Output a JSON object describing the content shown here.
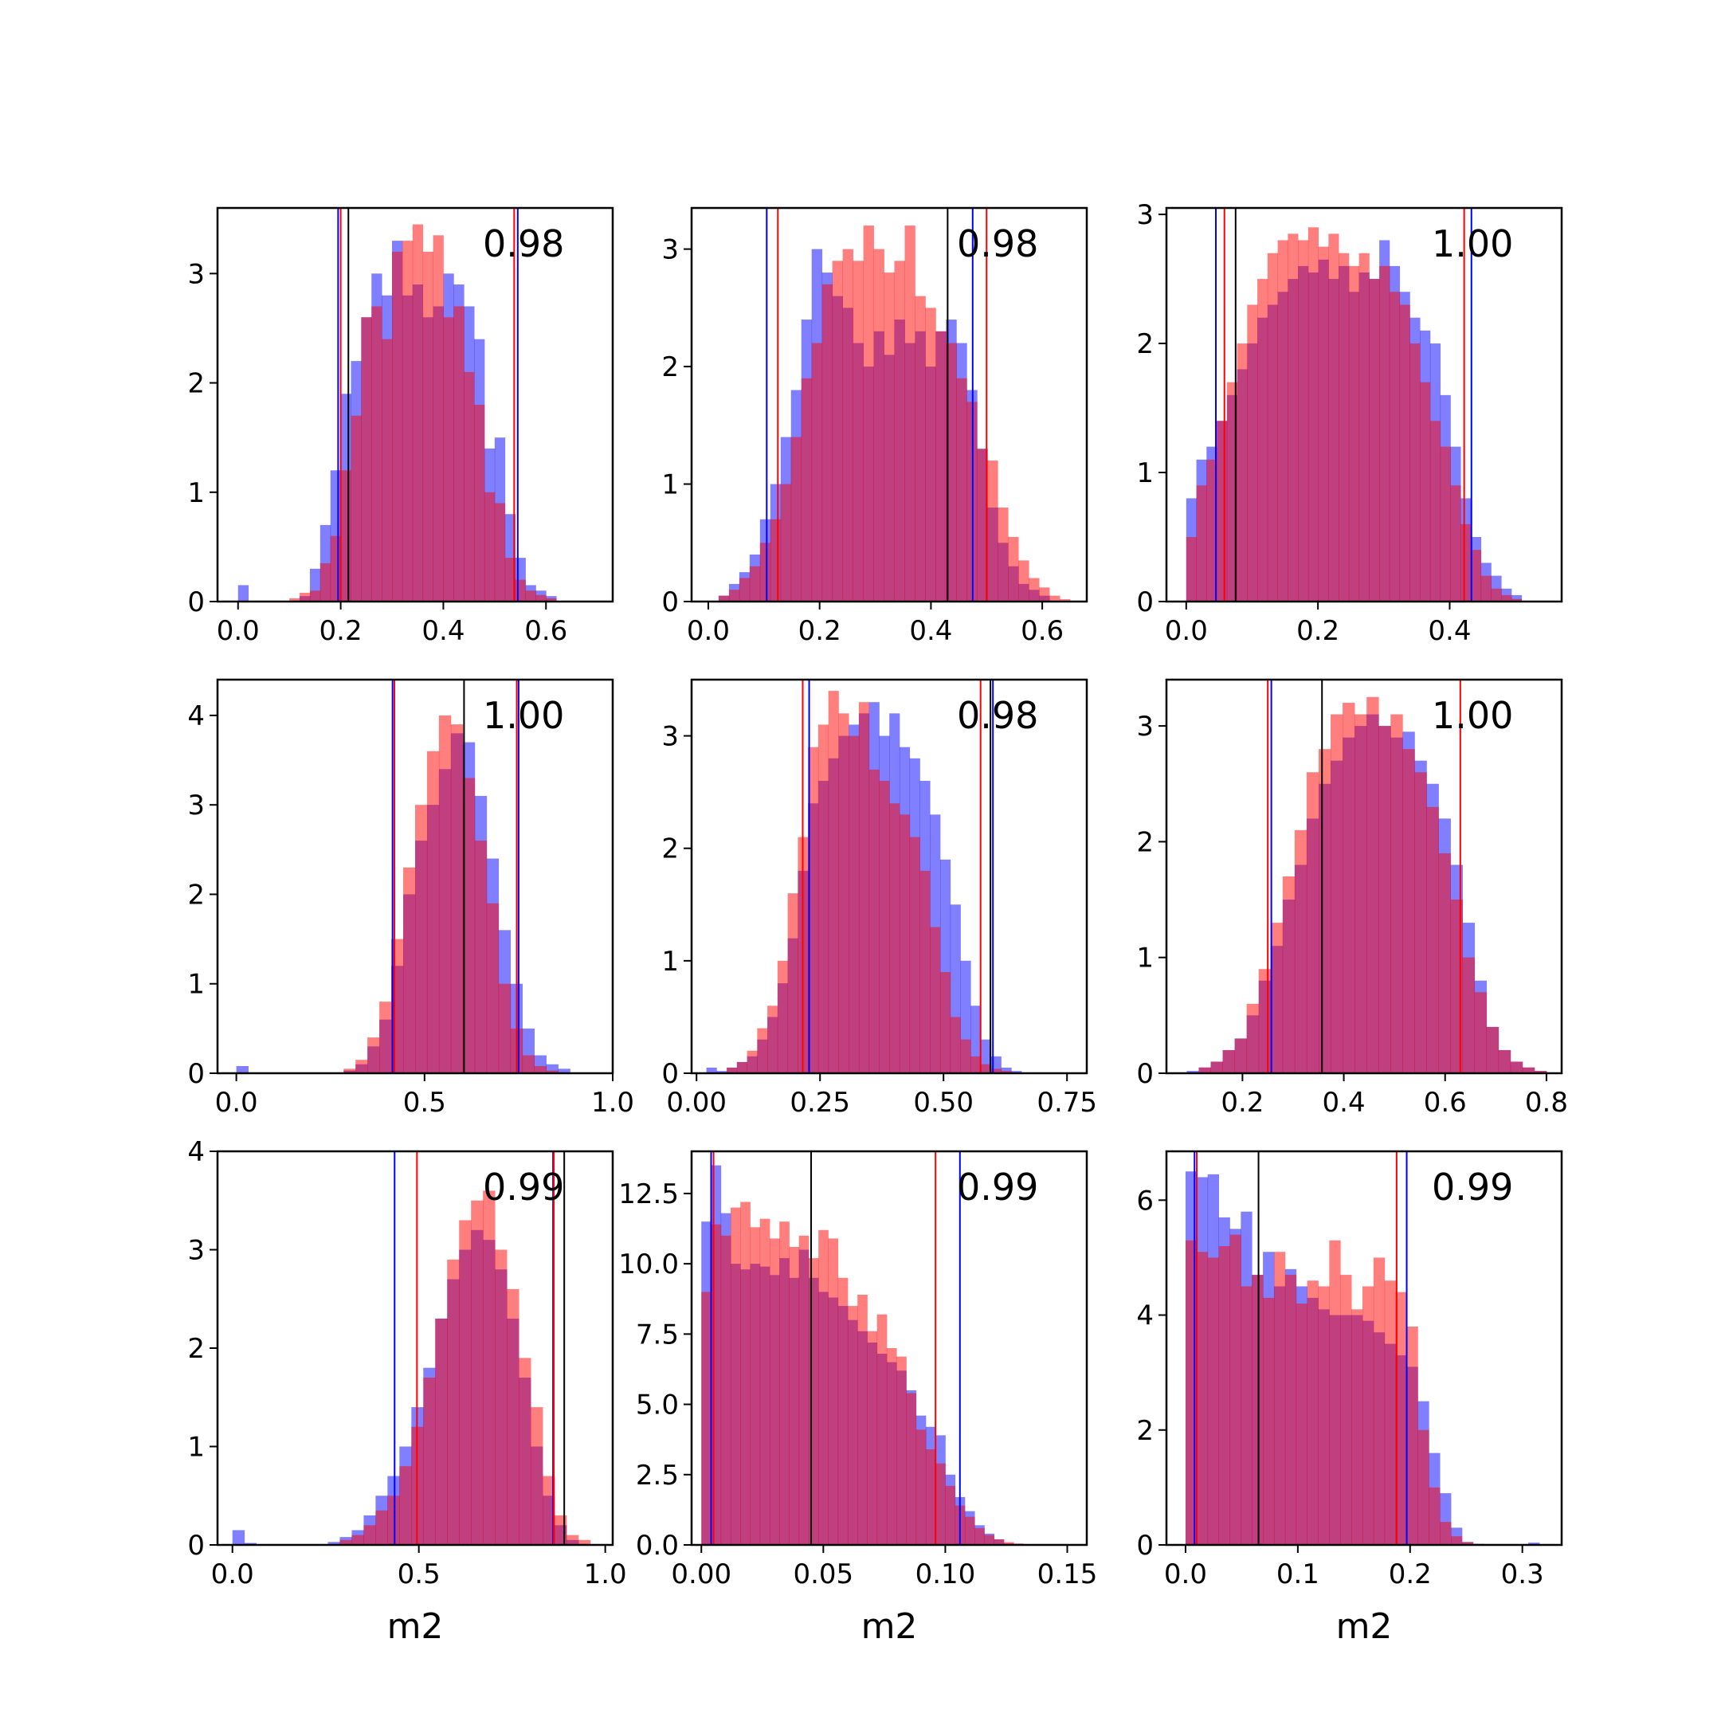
{
  "figure": {
    "background": "#ffffff"
  },
  "style": {
    "blue": "#0000ff",
    "red": "#ff0000",
    "purple": "#c0367b",
    "line_black": "#000000",
    "hist_alpha": 0.5
  },
  "chart_data": [
    {
      "type": "bar",
      "corr_label": "0.98",
      "xlabel": "",
      "xlim": [
        -0.04,
        0.73
      ],
      "ylim": [
        0,
        3.6
      ],
      "xticks": [
        0.0,
        0.2,
        0.4,
        0.6
      ],
      "xtick_labels": [
        "0.0",
        "0.2",
        "0.4",
        "0.6"
      ],
      "yticks": [
        0,
        1,
        2,
        3
      ],
      "ytick_labels": [
        "0",
        "1",
        "2",
        "3"
      ],
      "hist_range": [
        0.0,
        0.7
      ],
      "blue_hist": [
        0.15,
        0,
        0,
        0,
        0,
        0,
        0.05,
        0.3,
        0.7,
        1.2,
        1.9,
        2.2,
        2.6,
        3.0,
        2.8,
        3.3,
        2.8,
        2.9,
        2.6,
        2.7,
        3.0,
        2.9,
        2.7,
        2.4,
        1.4,
        1.5,
        0.8,
        0.4,
        0.15,
        0.1,
        0.05,
        0,
        0,
        0,
        0
      ],
      "red_hist": [
        0,
        0,
        0,
        0,
        0,
        0.03,
        0.08,
        0.1,
        0.35,
        0.6,
        1.2,
        1.7,
        2.6,
        2.7,
        2.4,
        3.2,
        3.3,
        3.45,
        3.2,
        3.35,
        2.6,
        2.7,
        2.1,
        1.8,
        1.0,
        0.9,
        0.4,
        0.2,
        0.1,
        0.06,
        0.03,
        0,
        0,
        0,
        0
      ],
      "lines": {
        "blue": [
          0.195,
          0.545
        ],
        "red": [
          0.2,
          0.538
        ],
        "black": [
          0.215
        ]
      }
    },
    {
      "type": "bar",
      "corr_label": "0.98",
      "xlabel": "",
      "xlim": [
        -0.03,
        0.68
      ],
      "ylim": [
        0,
        3.35
      ],
      "xticks": [
        0.0,
        0.2,
        0.4,
        0.6
      ],
      "xtick_labels": [
        "0.0",
        "0.2",
        "0.4",
        "0.6"
      ],
      "yticks": [
        0,
        1,
        2,
        3
      ],
      "ytick_labels": [
        "0",
        "1",
        "2",
        "3"
      ],
      "hist_range": [
        0.0,
        0.65
      ],
      "blue_hist": [
        0,
        0.05,
        0.15,
        0.25,
        0.4,
        0.7,
        1.0,
        1.4,
        1.8,
        2.4,
        3.0,
        2.8,
        2.6,
        2.5,
        2.2,
        2.0,
        2.3,
        2.1,
        2.4,
        2.2,
        2.3,
        2.0,
        2.3,
        2.4,
        2.2,
        1.8,
        1.3,
        0.8,
        0.5,
        0.3,
        0.15,
        0.1,
        0.05,
        0,
        0
      ],
      "red_hist": [
        0,
        0.05,
        0.1,
        0.2,
        0.3,
        0.5,
        0.7,
        1.0,
        1.4,
        1.9,
        2.2,
        2.7,
        2.9,
        3.0,
        2.9,
        3.2,
        3.0,
        2.8,
        2.9,
        3.2,
        2.6,
        2.5,
        2.3,
        2.2,
        1.9,
        1.7,
        1.3,
        1.2,
        0.8,
        0.55,
        0.35,
        0.2,
        0.12,
        0.05,
        0.02
      ],
      "lines": {
        "blue": [
          0.105,
          0.475
        ],
        "red": [
          0.125,
          0.5
        ],
        "black": [
          0.43
        ]
      }
    },
    {
      "type": "bar",
      "corr_label": "1.00",
      "xlabel": "",
      "xlim": [
        -0.03,
        0.57
      ],
      "ylim": [
        0,
        3.05
      ],
      "xticks": [
        0.0,
        0.2,
        0.4
      ],
      "xtick_labels": [
        "0.0",
        "0.2",
        "0.4"
      ],
      "yticks": [
        0,
        1,
        2,
        3
      ],
      "ytick_labels": [
        "0",
        "1",
        "2",
        "3"
      ],
      "hist_range": [
        0.0,
        0.54
      ],
      "blue_hist": [
        0.8,
        1.1,
        1.2,
        1.4,
        1.6,
        1.8,
        2.0,
        2.2,
        2.3,
        2.4,
        2.5,
        2.6,
        2.55,
        2.65,
        2.5,
        2.6,
        2.4,
        2.55,
        2.5,
        2.8,
        2.6,
        2.4,
        2.2,
        2.1,
        2.0,
        1.6,
        1.2,
        0.8,
        0.5,
        0.3,
        0.2,
        0.1,
        0.05,
        0,
        0
      ],
      "red_hist": [
        0.5,
        0.9,
        1.1,
        1.4,
        1.7,
        2.0,
        2.3,
        2.5,
        2.7,
        2.8,
        2.85,
        2.8,
        2.9,
        2.75,
        2.85,
        2.7,
        2.6,
        2.7,
        2.5,
        2.6,
        2.4,
        2.3,
        2.0,
        1.7,
        1.4,
        1.2,
        0.9,
        0.6,
        0.4,
        0.2,
        0.1,
        0.05,
        0.02,
        0,
        0
      ],
      "lines": {
        "blue": [
          0.045,
          0.433
        ],
        "red": [
          0.058,
          0.422
        ],
        "black": [
          0.075
        ]
      }
    },
    {
      "type": "bar",
      "corr_label": "1.00",
      "xlabel": "",
      "xlim": [
        -0.05,
        1.0
      ],
      "ylim": [
        0,
        4.4
      ],
      "xticks": [
        0.0,
        0.5,
        1.0
      ],
      "xtick_labels": [
        "0.0",
        "0.5",
        "1.0"
      ],
      "yticks": [
        0,
        1,
        2,
        3,
        4
      ],
      "ytick_labels": [
        "0",
        "1",
        "2",
        "3",
        "4"
      ],
      "hist_range": [
        0.0,
        0.95
      ],
      "blue_hist": [
        0.08,
        0,
        0,
        0,
        0,
        0,
        0,
        0,
        0,
        0.03,
        0.1,
        0.3,
        0.6,
        1.2,
        2.0,
        2.6,
        3.0,
        3.4,
        3.8,
        3.7,
        3.1,
        2.4,
        1.6,
        1.0,
        0.5,
        0.2,
        0.1,
        0.05,
        0,
        0
      ],
      "red_hist": [
        0,
        0,
        0,
        0,
        0,
        0,
        0,
        0,
        0,
        0.05,
        0.15,
        0.4,
        0.8,
        1.5,
        2.3,
        3.0,
        3.6,
        4.0,
        3.9,
        3.3,
        2.6,
        1.9,
        1.0,
        0.5,
        0.2,
        0.08,
        0.03,
        0,
        0,
        0
      ],
      "lines": {
        "blue": [
          0.415,
          0.75
        ],
        "red": [
          0.42,
          0.745
        ],
        "black": [
          0.605
        ]
      }
    },
    {
      "type": "bar",
      "corr_label": "0.98",
      "xlabel": "",
      "xlim": [
        -0.01,
        0.79
      ],
      "ylim": [
        0,
        3.5
      ],
      "xticks": [
        0.0,
        0.25,
        0.5,
        0.75
      ],
      "xtick_labels": [
        "0.00",
        "0.25",
        "0.50",
        "0.75"
      ],
      "yticks": [
        0,
        1,
        2,
        3
      ],
      "ytick_labels": [
        "0",
        "1",
        "2",
        "3"
      ],
      "hist_range": [
        0.02,
        0.74
      ],
      "blue_hist": [
        0.05,
        0.02,
        0.05,
        0.1,
        0.15,
        0.3,
        0.5,
        0.8,
        1.2,
        1.8,
        2.4,
        2.6,
        2.8,
        3.0,
        3.1,
        3.2,
        3.3,
        3.0,
        3.2,
        2.9,
        2.8,
        2.6,
        2.3,
        1.9,
        1.5,
        1.0,
        0.6,
        0.3,
        0.15,
        0.05,
        0.02,
        0,
        0,
        0,
        0
      ],
      "red_hist": [
        0,
        0,
        0.05,
        0.1,
        0.2,
        0.4,
        0.6,
        1.0,
        1.6,
        2.1,
        2.9,
        3.1,
        3.4,
        3.2,
        3.0,
        3.3,
        2.7,
        2.6,
        2.4,
        2.3,
        2.1,
        1.8,
        1.3,
        0.9,
        0.5,
        0.3,
        0.15,
        0.08,
        0.04,
        0.02,
        0,
        0,
        0,
        0,
        0
      ],
      "lines": {
        "blue": [
          0.228,
          0.6
        ],
        "red": [
          0.215,
          0.575
        ],
        "black": [
          0.595
        ]
      }
    },
    {
      "type": "bar",
      "corr_label": "1.00",
      "xlabel": "",
      "xlim": [
        0.05,
        0.83
      ],
      "ylim": [
        0,
        3.4
      ],
      "xticks": [
        0.2,
        0.4,
        0.6,
        0.8
      ],
      "xtick_labels": [
        "0.2",
        "0.4",
        "0.6",
        "0.8"
      ],
      "yticks": [
        0,
        1,
        2,
        3
      ],
      "ytick_labels": [
        "0",
        "1",
        "2",
        "3"
      ],
      "hist_range": [
        0.09,
        0.8
      ],
      "blue_hist": [
        0.02,
        0.05,
        0.1,
        0.2,
        0.3,
        0.5,
        0.8,
        1.1,
        1.5,
        1.8,
        2.2,
        2.5,
        2.7,
        2.9,
        3.0,
        3.1,
        3.0,
        2.9,
        2.95,
        2.7,
        2.5,
        2.2,
        1.8,
        1.3,
        0.8,
        0.4,
        0.2,
        0.1,
        0.05,
        0.02
      ],
      "red_hist": [
        0,
        0.05,
        0.1,
        0.2,
        0.3,
        0.6,
        0.9,
        1.3,
        1.7,
        2.1,
        2.6,
        2.8,
        3.1,
        3.2,
        3.1,
        3.25,
        3.0,
        3.1,
        2.8,
        2.6,
        2.3,
        1.9,
        1.5,
        1.0,
        0.7,
        0.4,
        0.2,
        0.1,
        0.05,
        0.02
      ],
      "lines": {
        "blue": [
          0.257
        ],
        "red": [
          0.25,
          0.63
        ],
        "black": [
          0.357
        ]
      }
    },
    {
      "type": "bar",
      "corr_label": "0.99",
      "xlabel": "m2",
      "xlim": [
        -0.04,
        1.02
      ],
      "ylim": [
        0,
        4.0
      ],
      "xticks": [
        0.0,
        0.5,
        1.0
      ],
      "xtick_labels": [
        "0.0",
        "0.5",
        "1.0"
      ],
      "yticks": [
        0,
        1,
        2,
        3,
        4
      ],
      "ytick_labels": [
        "0",
        "1",
        "2",
        "3",
        "4"
      ],
      "hist_range": [
        0.0,
        0.96
      ],
      "blue_hist": [
        0.15,
        0.02,
        0,
        0,
        0,
        0,
        0,
        0,
        0.03,
        0.08,
        0.15,
        0.3,
        0.5,
        0.7,
        1.0,
        1.4,
        1.8,
        2.3,
        2.7,
        3.0,
        3.2,
        3.1,
        2.8,
        2.3,
        1.7,
        1.0,
        0.5,
        0.2,
        0.05,
        0
      ],
      "red_hist": [
        0,
        0,
        0,
        0,
        0,
        0,
        0,
        0,
        0,
        0.05,
        0.1,
        0.2,
        0.35,
        0.5,
        0.8,
        1.2,
        1.7,
        2.3,
        2.9,
        3.3,
        3.5,
        3.6,
        3.0,
        2.6,
        1.9,
        1.4,
        0.7,
        0.3,
        0.1,
        0.05
      ],
      "lines": {
        "blue": [
          0.435,
          0.86
        ],
        "red": [
          0.495,
          0.862
        ],
        "black": [
          0.89
        ]
      }
    },
    {
      "type": "bar",
      "corr_label": "0.99",
      "xlabel": "m2",
      "xlim": [
        -0.004,
        0.158
      ],
      "ylim": [
        0,
        14.0
      ],
      "xticks": [
        0.0,
        0.05,
        0.1,
        0.15
      ],
      "xtick_labels": [
        "0.00",
        "0.05",
        "0.10",
        "0.15"
      ],
      "yticks": [
        0,
        2.5,
        5.0,
        7.5,
        10.0,
        12.5
      ],
      "ytick_labels": [
        "0.0",
        "2.5",
        "5.0",
        "7.5",
        "10.0",
        "12.5"
      ],
      "hist_range": [
        0.0,
        0.14
      ],
      "blue_hist": [
        11.5,
        13.5,
        11.8,
        10.0,
        9.8,
        10.0,
        9.9,
        9.6,
        10.2,
        9.5,
        10.5,
        9.5,
        9.0,
        8.8,
        8.5,
        8.0,
        7.6,
        7.2,
        6.8,
        6.5,
        6.2,
        5.5,
        4.6,
        4.2,
        3.9,
        2.5,
        1.7,
        1.2,
        0.7,
        0.4,
        0.2,
        0.05,
        0.02,
        0,
        0
      ],
      "red_hist": [
        9.0,
        11.4,
        11.0,
        12.0,
        12.2,
        11.3,
        11.6,
        10.9,
        11.5,
        10.6,
        11.0,
        10.2,
        11.2,
        10.9,
        9.5,
        8.5,
        8.9,
        7.6,
        8.2,
        7.0,
        6.7,
        5.4,
        4.1,
        3.4,
        2.9,
        2.1,
        1.4,
        1.0,
        0.6,
        0.35,
        0.2,
        0.1,
        0.05,
        0.02,
        0
      ],
      "lines": {
        "blue": [
          0.004,
          0.106
        ],
        "red": [
          0.005,
          0.096
        ],
        "black": [
          0.045
        ]
      }
    },
    {
      "type": "bar",
      "corr_label": "0.99",
      "xlabel": "m2",
      "xlim": [
        -0.017,
        0.335
      ],
      "ylim": [
        0,
        6.85
      ],
      "xticks": [
        0.0,
        0.1,
        0.2,
        0.3
      ],
      "xtick_labels": [
        "0.0",
        "0.1",
        "0.2",
        "0.3"
      ],
      "yticks": [
        0,
        2,
        4,
        6
      ],
      "ytick_labels": [
        "0",
        "2",
        "4",
        "6"
      ],
      "hist_range": [
        0.0,
        0.325
      ],
      "blue_hist": [
        6.5,
        6.4,
        6.45,
        5.7,
        5.5,
        5.8,
        4.7,
        5.1,
        4.5,
        4.8,
        4.5,
        4.3,
        4.1,
        4.0,
        4.0,
        4.0,
        3.9,
        3.7,
        3.5,
        3.3,
        3.1,
        2.5,
        1.6,
        0.9,
        0.3,
        0.05,
        0.02,
        0,
        0,
        0,
        0,
        0.04,
        0
      ],
      "red_hist": [
        5.3,
        5.1,
        5.0,
        5.2,
        5.4,
        4.5,
        4.7,
        4.3,
        5.1,
        4.7,
        4.2,
        4.6,
        4.5,
        5.3,
        4.7,
        4.1,
        4.5,
        5.0,
        4.6,
        4.4,
        3.8,
        2.0,
        1.0,
        0.4,
        0.15,
        0.05,
        0,
        0,
        0,
        0,
        0,
        0,
        0
      ],
      "lines": {
        "blue": [
          0.008,
          0.197
        ],
        "red": [
          0.01,
          0.188
        ],
        "black": [
          0.065
        ]
      }
    }
  ]
}
